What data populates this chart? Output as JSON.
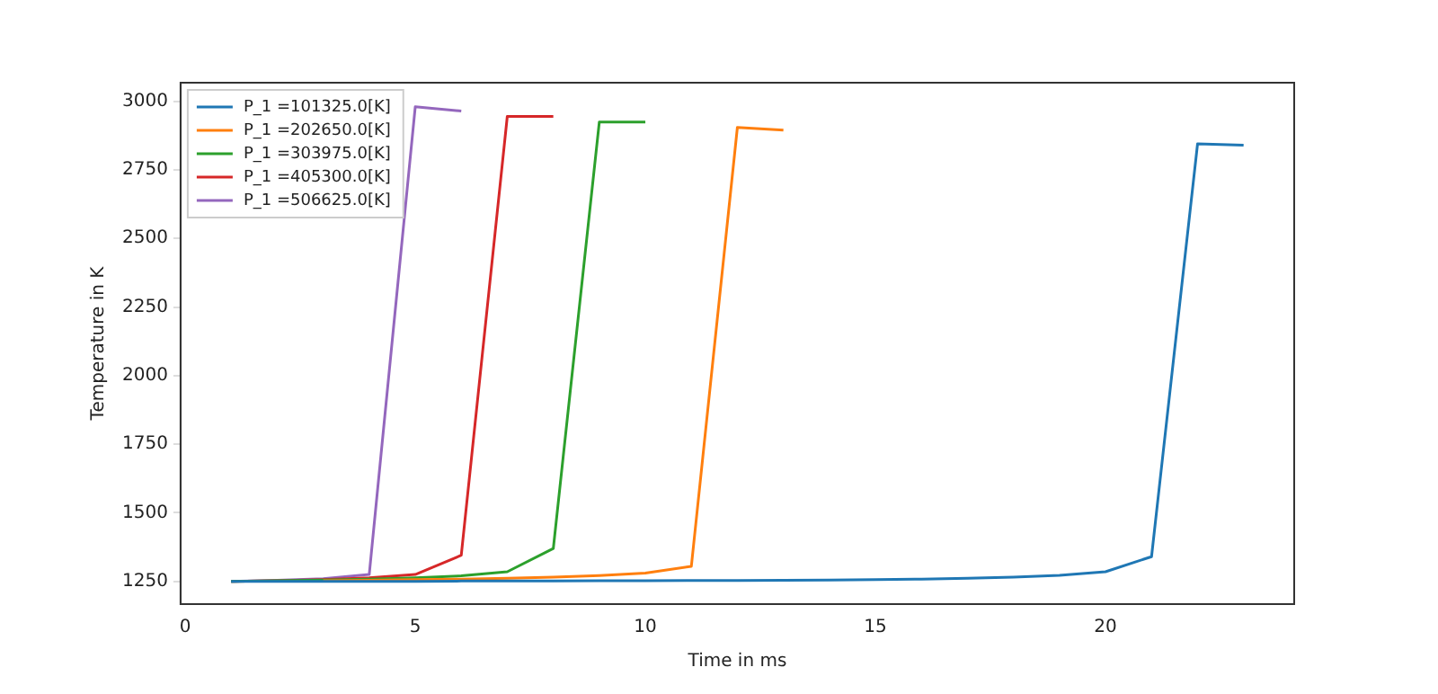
{
  "chart_data": {
    "type": "line",
    "xlabel": "Time in ms",
    "ylabel": "Temperature in K",
    "xlim": [
      -0.1,
      24.1
    ],
    "xticks": [
      0,
      5,
      10,
      15,
      20
    ],
    "ylim": [
      1167,
      3068
    ],
    "yticks": [
      1250,
      1500,
      1750,
      2000,
      2250,
      2500,
      2750,
      3000
    ],
    "grid": false,
    "legend": "top left",
    "marker": "none",
    "line_style": "solid",
    "series": [
      {
        "name": "P_1 =101325.0[K]",
        "color": "#1f77b4",
        "x": [
          1,
          2,
          3,
          4,
          5,
          6,
          7,
          8,
          9,
          10,
          11,
          12,
          13,
          14,
          15,
          16,
          17,
          18,
          19,
          20,
          21,
          22,
          23
        ],
        "values": [
          1250,
          1250,
          1250,
          1250,
          1250,
          1251,
          1251,
          1251,
          1252,
          1252,
          1253,
          1253,
          1254,
          1255,
          1256,
          1258,
          1261,
          1265,
          1272,
          1285,
          1340,
          2845,
          2840
        ]
      },
      {
        "name": "P_1 =202650.0[K]",
        "color": "#ff7f0e",
        "x": [
          3,
          4,
          5,
          6,
          7,
          8,
          9,
          10,
          11,
          12,
          13
        ],
        "values": [
          1252,
          1254,
          1256,
          1258,
          1261,
          1265,
          1271,
          1280,
          1305,
          2905,
          2895
        ]
      },
      {
        "name": "P_1 =303975.0[K]",
        "color": "#2ca02c",
        "x": [
          1,
          2,
          3,
          4,
          5,
          6,
          7,
          8,
          9,
          10
        ],
        "values": [
          1250,
          1252,
          1255,
          1258,
          1263,
          1270,
          1285,
          1370,
          2925,
          2925
        ]
      },
      {
        "name": "P_1 =405300.0[K]",
        "color": "#d62728",
        "x": [
          1,
          2,
          3,
          4,
          5,
          6,
          7,
          8
        ],
        "values": [
          1250,
          1252,
          1256,
          1263,
          1275,
          1345,
          2945,
          2945
        ]
      },
      {
        "name": "P_1 =506625.0[K]",
        "color": "#9467bd",
        "x": [
          1,
          2,
          3,
          4,
          5,
          6
        ],
        "values": [
          1250,
          1254,
          1260,
          1275,
          2980,
          2965
        ]
      }
    ]
  }
}
